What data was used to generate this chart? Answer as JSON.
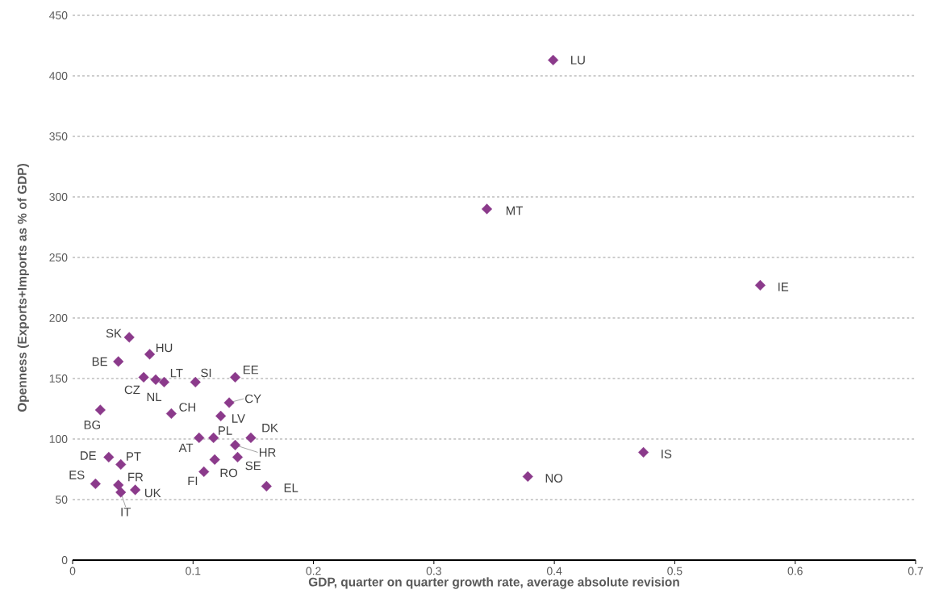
{
  "chart_data": {
    "type": "scatter",
    "xlabel": "GDP, quarter on quarter growth rate, average absolute revision",
    "ylabel": "Openness (Exports+Imports as % of GDP)",
    "xlim": [
      0,
      0.7
    ],
    "ylim": [
      0,
      450
    ],
    "xticks": [
      0,
      0.1,
      0.2,
      0.3,
      0.4,
      0.5,
      0.6,
      0.7
    ],
    "yticks": [
      0,
      50,
      100,
      150,
      200,
      250,
      300,
      350,
      400,
      450
    ],
    "grid": "y",
    "marker": "diamond",
    "series": [
      {
        "color": "#8b3a8b",
        "x": [
          0.047,
          0.064,
          0.038,
          0.059,
          0.069,
          0.076,
          0.102,
          0.135,
          0.13,
          0.023,
          0.082,
          0.123,
          0.105,
          0.117,
          0.148,
          0.135,
          0.137,
          0.118,
          0.109,
          0.161,
          0.03,
          0.04,
          0.019,
          0.038,
          0.04,
          0.052,
          0.399,
          0.344,
          0.571,
          0.474,
          0.378
        ],
        "values": [
          184,
          170,
          164,
          151,
          149,
          147,
          147,
          151,
          130,
          124,
          121,
          119,
          101,
          101,
          101,
          95,
          85,
          83,
          73,
          61,
          85,
          79,
          63,
          62,
          56,
          58,
          413,
          290,
          227,
          89,
          69
        ]
      }
    ],
    "annotations": [
      {
        "text": "SK",
        "x": 0.047,
        "y": 184
      },
      {
        "text": "HU",
        "x": 0.064,
        "y": 170
      },
      {
        "text": "BE",
        "x": 0.038,
        "y": 164
      },
      {
        "text": "CZ",
        "x": 0.059,
        "y": 151
      },
      {
        "text": "NL",
        "x": 0.069,
        "y": 149
      },
      {
        "text": "LT",
        "x": 0.076,
        "y": 147
      },
      {
        "text": "SI",
        "x": 0.102,
        "y": 147
      },
      {
        "text": "EE",
        "x": 0.135,
        "y": 151
      },
      {
        "text": "CY",
        "x": 0.13,
        "y": 130
      },
      {
        "text": "BG",
        "x": 0.023,
        "y": 124
      },
      {
        "text": "CH",
        "x": 0.082,
        "y": 121
      },
      {
        "text": "LV",
        "x": 0.123,
        "y": 119
      },
      {
        "text": "AT",
        "x": 0.105,
        "y": 101
      },
      {
        "text": "PL",
        "x": 0.117,
        "y": 101
      },
      {
        "text": "DK",
        "x": 0.148,
        "y": 101
      },
      {
        "text": "HR",
        "x": 0.135,
        "y": 95
      },
      {
        "text": "SE",
        "x": 0.137,
        "y": 85
      },
      {
        "text": "RO",
        "x": 0.118,
        "y": 83
      },
      {
        "text": "FI",
        "x": 0.109,
        "y": 73
      },
      {
        "text": "EL",
        "x": 0.161,
        "y": 61
      },
      {
        "text": "DE",
        "x": 0.03,
        "y": 85
      },
      {
        "text": "PT",
        "x": 0.04,
        "y": 79
      },
      {
        "text": "ES",
        "x": 0.019,
        "y": 63
      },
      {
        "text": "FR",
        "x": 0.038,
        "y": 62
      },
      {
        "text": "IT",
        "x": 0.04,
        "y": 56
      },
      {
        "text": "UK",
        "x": 0.052,
        "y": 58
      },
      {
        "text": "LU",
        "x": 0.399,
        "y": 413
      },
      {
        "text": "MT",
        "x": 0.344,
        "y": 290
      },
      {
        "text": "IE",
        "x": 0.571,
        "y": 227
      },
      {
        "text": "IS",
        "x": 0.474,
        "y": 89
      },
      {
        "text": "NO",
        "x": 0.378,
        "y": 69
      }
    ]
  }
}
